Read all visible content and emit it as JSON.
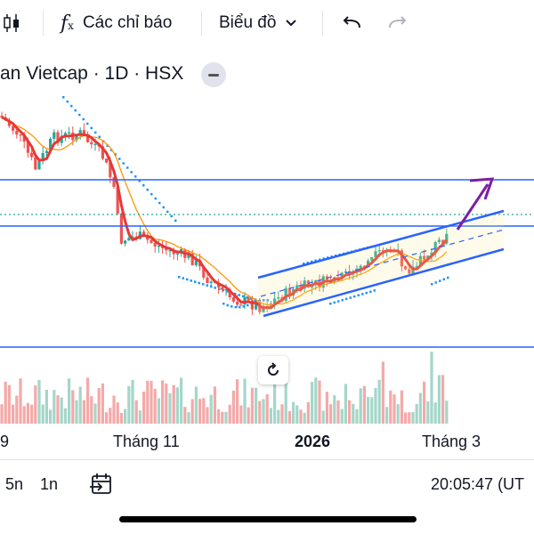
{
  "toolbar": {
    "indicators_label": "Các chỉ báo",
    "chart_label": "Biểu đồ"
  },
  "symbol": {
    "title": "an Vietcap · 1D · HSX"
  },
  "x_axis": {
    "labels": [
      "9",
      "Tháng 11",
      "2026",
      "Tháng 3"
    ]
  },
  "bottom": {
    "interval_5n": "5n",
    "interval_1n": "1n",
    "clock": "20:05:47 (UT"
  },
  "colors": {
    "up": "#26a69a",
    "down": "#ef5350",
    "ma_red": "#e53935",
    "ma_orange": "#ff9800",
    "channel": "#2962ff",
    "sar": "#2196f3",
    "arrow": "#7b1fa2",
    "volume_up": "#a5d6c9",
    "volume_down": "#f4a9a8"
  }
}
